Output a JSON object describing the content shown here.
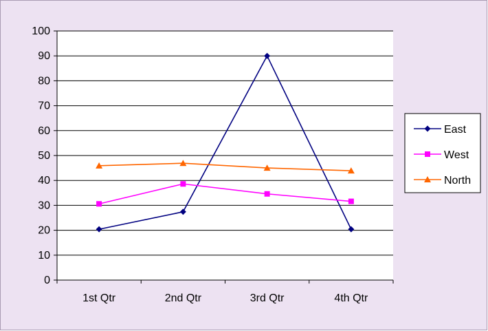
{
  "chart_data": {
    "type": "line",
    "categories": [
      "1st Qtr",
      "2nd Qtr",
      "3rd Qtr",
      "4th Qtr"
    ],
    "series": [
      {
        "name": "East",
        "values": [
          20.4,
          27.4,
          90,
          20.4
        ],
        "color": "#000080",
        "marker": "diamond"
      },
      {
        "name": "West",
        "values": [
          30.6,
          38.6,
          34.6,
          31.6
        ],
        "color": "#ff00ff",
        "marker": "square"
      },
      {
        "name": "North",
        "values": [
          45.9,
          46.9,
          45,
          43.9
        ],
        "color": "#ff6600",
        "marker": "triangle"
      }
    ],
    "yticks": [
      "0",
      "10",
      "20",
      "30",
      "40",
      "50",
      "60",
      "70",
      "80",
      "90",
      "100"
    ],
    "ylim": [
      0,
      100
    ],
    "grid": true,
    "legend_position": "right",
    "plot_background": "#ffffff",
    "chart_background": "#ede2f2"
  }
}
